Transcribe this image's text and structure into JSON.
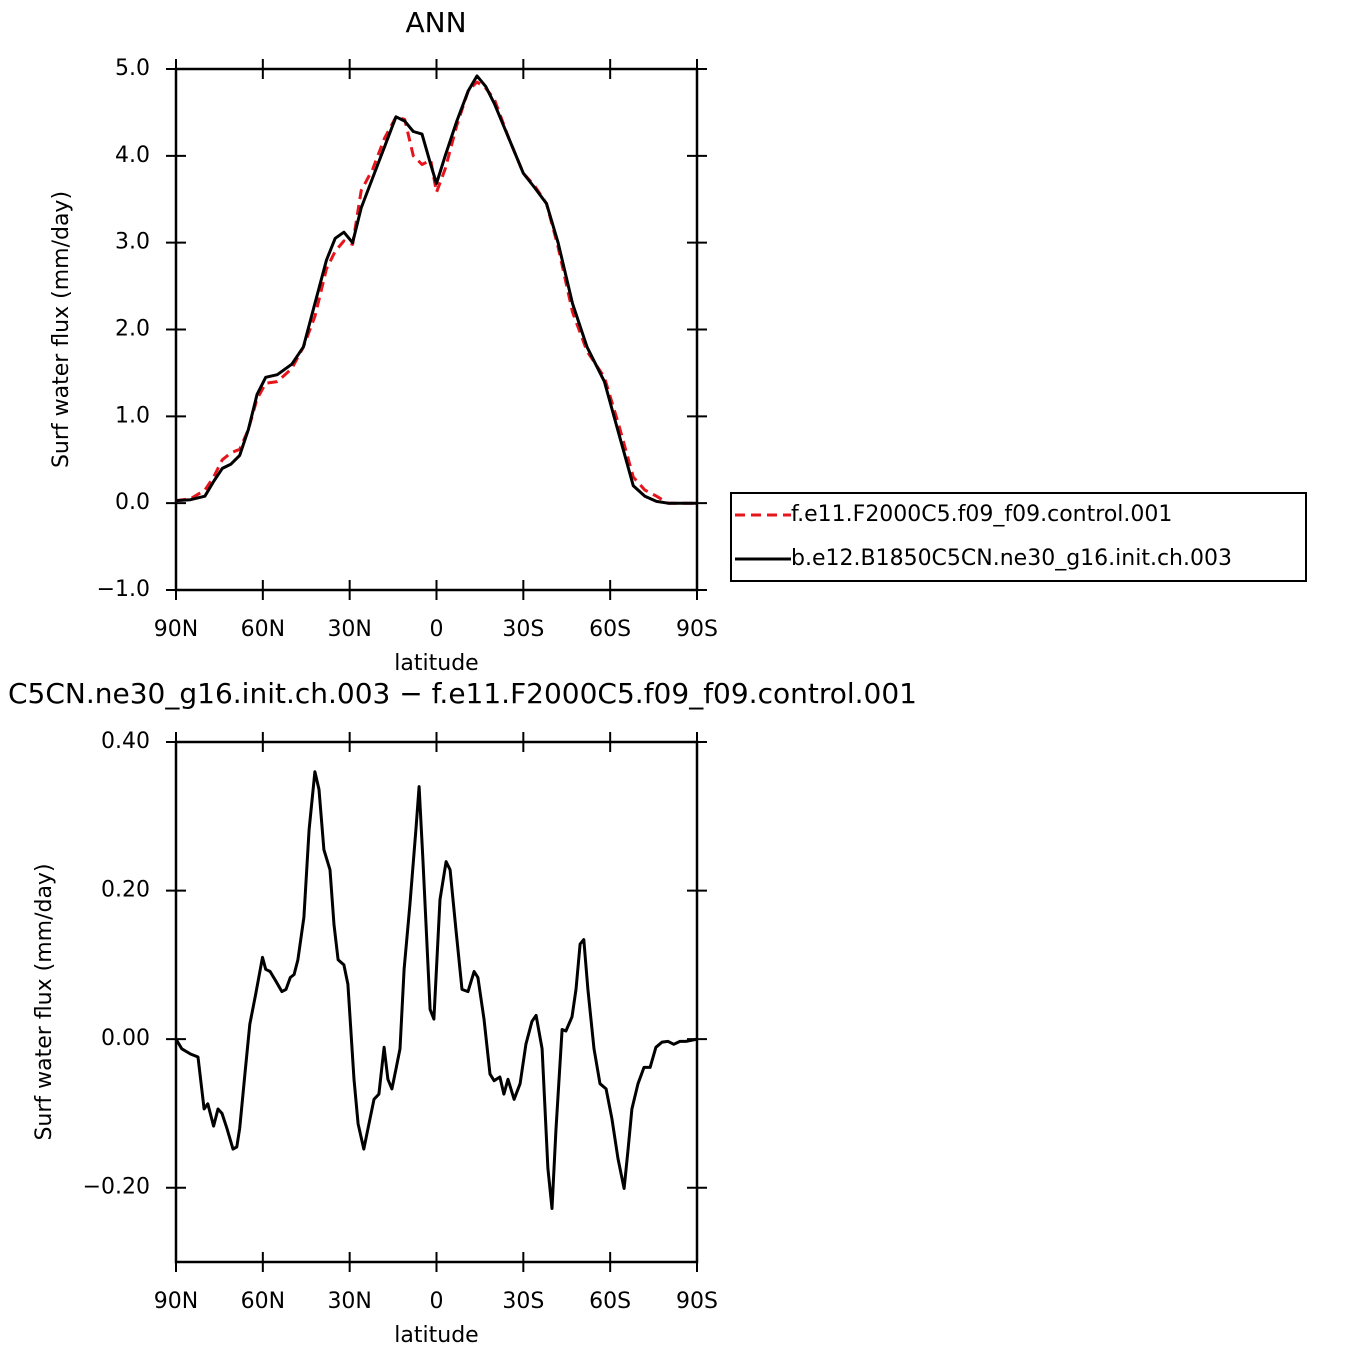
{
  "chart_data": [
    {
      "type": "line",
      "title": "ANN",
      "y_label": "Surf water flux (mm/day)",
      "x_label": "latitude",
      "xlim": [
        90,
        -90
      ],
      "xticks": [
        {
          "value": 90,
          "label": "90N"
        },
        {
          "value": 60,
          "label": "60N"
        },
        {
          "value": 30,
          "label": "30N"
        },
        0,
        {
          "value": -30,
          "label": "30S"
        },
        {
          "value": -60,
          "label": "60S"
        },
        {
          "value": -90,
          "label": "90S"
        }
      ],
      "ylim": [
        -1,
        5
      ],
      "yticks": [
        {
          "value": -1,
          "label": "−1.0"
        },
        {
          "value": 0,
          "label": "0.0"
        },
        {
          "value": 1,
          "label": "1.0"
        },
        {
          "value": 2,
          "label": "2.0"
        },
        {
          "value": 3,
          "label": "3.0"
        },
        {
          "value": 4,
          "label": "4.0"
        },
        {
          "value": 5,
          "label": "5.0"
        }
      ],
      "x": [
        90,
        85,
        80,
        77,
        74,
        71,
        68,
        65,
        62,
        59,
        55,
        50,
        46,
        42,
        38,
        35,
        32,
        29,
        26,
        22,
        18,
        14,
        11,
        8,
        5,
        2,
        0,
        -3,
        -7,
        -11,
        -14,
        -17,
        -20,
        -25,
        -30,
        -34,
        -38,
        -42,
        -47,
        -52,
        -58,
        -63,
        -68,
        -72,
        -76,
        -80,
        -85,
        -90
      ],
      "series": [
        {
          "name": "f.e11.F2000C5.f09_f09.control.001",
          "color": "#e8141c",
          "line_style": "dashed",
          "values": [
            0.03,
            0.05,
            0.15,
            0.3,
            0.5,
            0.58,
            0.62,
            0.85,
            1.2,
            1.38,
            1.4,
            1.55,
            1.8,
            2.15,
            2.7,
            2.9,
            3.02,
            2.98,
            3.6,
            3.85,
            4.2,
            4.45,
            4.42,
            4.0,
            3.9,
            3.95,
            3.58,
            3.85,
            4.35,
            4.75,
            4.85,
            4.78,
            4.65,
            4.2,
            3.8,
            3.65,
            3.45,
            2.95,
            2.2,
            1.75,
            1.45,
            0.9,
            0.3,
            0.15,
            0.08,
            0.0,
            0.0,
            0.0
          ]
        },
        {
          "name": "b.e12.B1850C5CN.ne30_g16.init.ch.003",
          "color": "#000000",
          "line_style": "solid",
          "values": [
            0.03,
            0.04,
            0.08,
            0.25,
            0.4,
            0.45,
            0.55,
            0.85,
            1.25,
            1.45,
            1.48,
            1.6,
            1.8,
            2.3,
            2.8,
            3.05,
            3.12,
            3.0,
            3.4,
            3.75,
            4.1,
            4.45,
            4.4,
            4.28,
            4.25,
            3.9,
            3.68,
            4.0,
            4.4,
            4.75,
            4.92,
            4.8,
            4.6,
            4.2,
            3.8,
            3.63,
            3.45,
            3.0,
            2.3,
            1.8,
            1.4,
            0.8,
            0.2,
            0.08,
            0.02,
            0.0,
            0.0,
            0.0
          ]
        }
      ],
      "legend": "outside-right"
    },
    {
      "type": "line",
      "title": "C5CN.ne30_g16.init.ch.003 − f.e11.F2000C5.f09_f09.control.001",
      "y_label": "Surf water flux (mm/day)",
      "x_label": "latitude",
      "xlim": [
        90,
        -90
      ],
      "xticks": [
        {
          "value": 90,
          "label": "90N"
        },
        {
          "value": 60,
          "label": "60N"
        },
        {
          "value": 30,
          "label": "30N"
        },
        0,
        {
          "value": -30,
          "label": "30S"
        },
        {
          "value": -60,
          "label": "60S"
        },
        {
          "value": -90,
          "label": "90S"
        }
      ],
      "ylim": [
        -0.3,
        0.4
      ],
      "yticks": [
        {
          "value": -0.2,
          "label": "−0.20"
        },
        {
          "value": 0,
          "label": "0.00"
        },
        {
          "value": 0.2,
          "label": "0.20"
        },
        {
          "value": 0.4,
          "label": "0.40"
        }
      ],
      "x": [
        90,
        88,
        85,
        82.4,
        80.3,
        79,
        77,
        75.5,
        74.1,
        72.4,
        70.3,
        69,
        68,
        66.2,
        64.5,
        62.5,
        60.1,
        59,
        57.5,
        55.5,
        53.4,
        52,
        50.5,
        49.2,
        47.9,
        45.8,
        44,
        42,
        40.6,
        38.9,
        36.8,
        35.4,
        34,
        32,
        30.6,
        28.5,
        27.1,
        25.1,
        23.7,
        21.6,
        19.9,
        18.1,
        16.8,
        15.4,
        14,
        12.6,
        11.2,
        9.2,
        7.1,
        6,
        4.7,
        2.2,
        0.9,
        -1.2,
        -3.3,
        -4.7,
        -6.7,
        -8.8,
        -10.9,
        -13,
        -14.3,
        -16.4,
        -18.5,
        -19.9,
        -21.9,
        -23.3,
        -24.7,
        -26.8,
        -28.9,
        -30.9,
        -33,
        -34.4,
        -36.5,
        -38.5,
        -39.9,
        -41.3,
        -43.4,
        -44.7,
        -46.8,
        -48.2,
        -49.6,
        -50.9,
        -52.3,
        -54.4,
        -56.5,
        -58.6,
        -60.6,
        -62.7,
        -64.8,
        -66.2,
        -67.5,
        -69.6,
        -71.7,
        -73.8,
        -75.8,
        -77.9,
        -80,
        -82,
        -84.1,
        -86.2,
        -90
      ],
      "color": "#000000",
      "values": [
        0,
        -0.013,
        -0.02,
        -0.024,
        -0.094,
        -0.087,
        -0.117,
        -0.094,
        -0.1,
        -0.12,
        -0.148,
        -0.145,
        -0.12,
        -0.047,
        0.02,
        0.06,
        0.11,
        0.094,
        0.091,
        0.078,
        0.064,
        0.067,
        0.083,
        0.087,
        0.107,
        0.164,
        0.282,
        0.36,
        0.336,
        0.255,
        0.228,
        0.154,
        0.107,
        0.1,
        0.074,
        -0.054,
        -0.114,
        -0.148,
        -0.121,
        -0.081,
        -0.074,
        -0.011,
        -0.054,
        -0.067,
        -0.04,
        -0.013,
        0.094,
        0.181,
        0.282,
        0.34,
        0.242,
        0.04,
        0.027,
        0.188,
        0.239,
        0.228,
        0.148,
        0.067,
        0.064,
        0.091,
        0.083,
        0.027,
        -0.047,
        -0.056,
        -0.051,
        -0.074,
        -0.054,
        -0.081,
        -0.06,
        -0.007,
        0.024,
        0.032,
        -0.013,
        -0.174,
        -0.228,
        -0.121,
        0.013,
        0.011,
        0.03,
        0.067,
        0.128,
        0.134,
        0.067,
        -0.013,
        -0.06,
        -0.067,
        -0.107,
        -0.161,
        -0.201,
        -0.148,
        -0.094,
        -0.06,
        -0.038,
        -0.038,
        -0.011,
        -0.004,
        -0.003,
        -0.007,
        -0.003,
        -0.003,
        0
      ]
    }
  ]
}
